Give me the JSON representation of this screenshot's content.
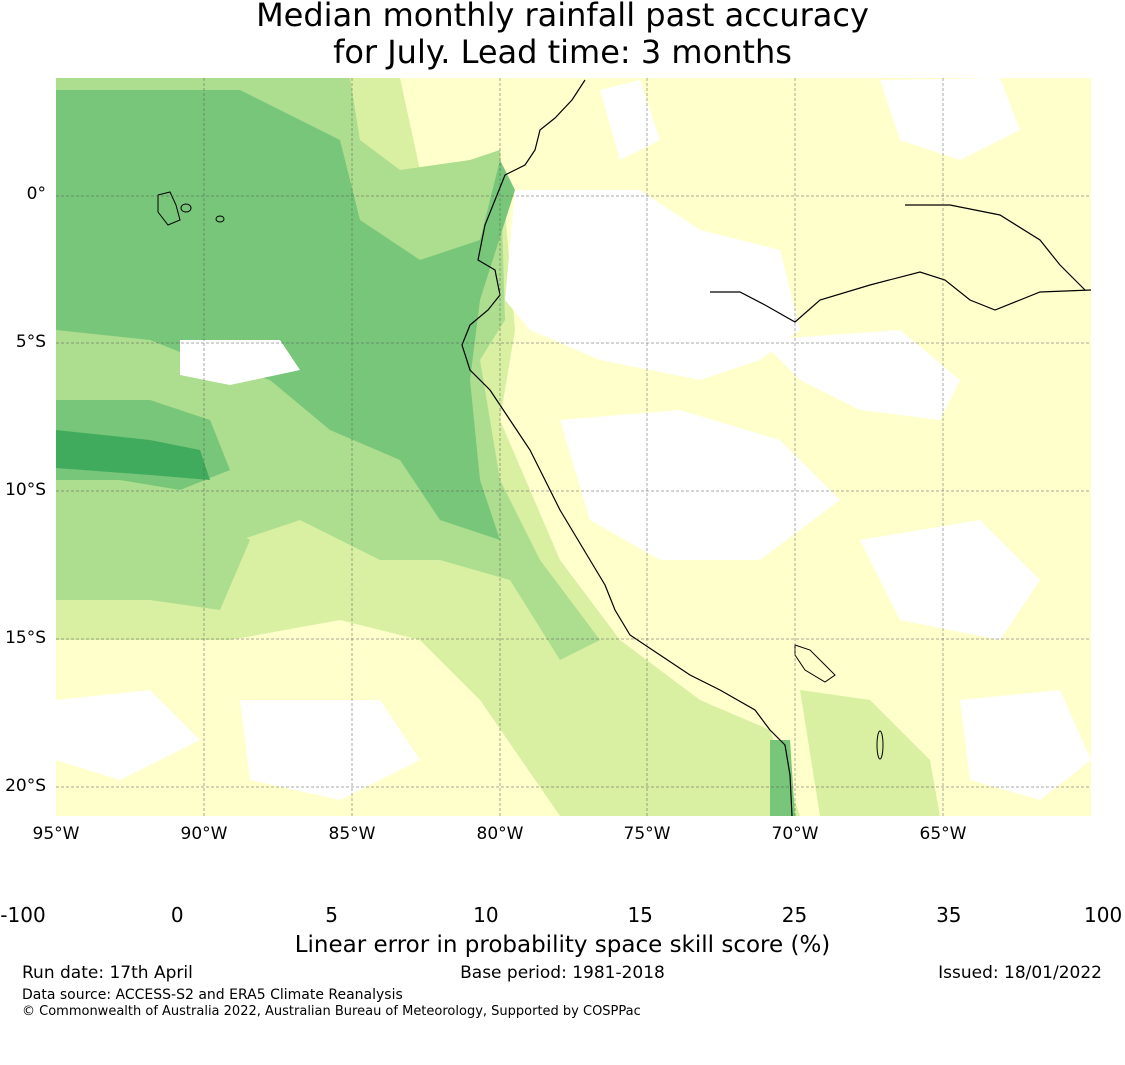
{
  "title_line1": "Median monthly rainfall past accuracy",
  "title_line2": "for July. Lead time: 3 months",
  "lat_labels": [
    "0°",
    "5°S",
    "10°S",
    "15°S",
    "20°S"
  ],
  "lon_labels": [
    "95°W",
    "90°W",
    "85°W",
    "80°W",
    "75°W",
    "70°W",
    "65°W"
  ],
  "colorbar": {
    "ticks": [
      "-100",
      "0",
      "5",
      "10",
      "15",
      "25",
      "35",
      "100"
    ],
    "colors": [
      "#ffffff",
      "#ffffcc",
      "#d9f0a3",
      "#addd8e",
      "#78c679",
      "#41ab5d",
      "#238443"
    ],
    "label": "Linear error in probability space skill score (%)"
  },
  "footer": {
    "run_date": "Run date: 17th April",
    "base_period": "Base period: 1981-2018",
    "issued": "Issued: 18/01/2022",
    "data_source": "Data source: ACCESS-S2 and ERA5 Climate Reanalysis",
    "copyright": "© Commonwealth of Australia 2022, Australian Bureau of Meteorology, Supported by COSPPac"
  }
}
